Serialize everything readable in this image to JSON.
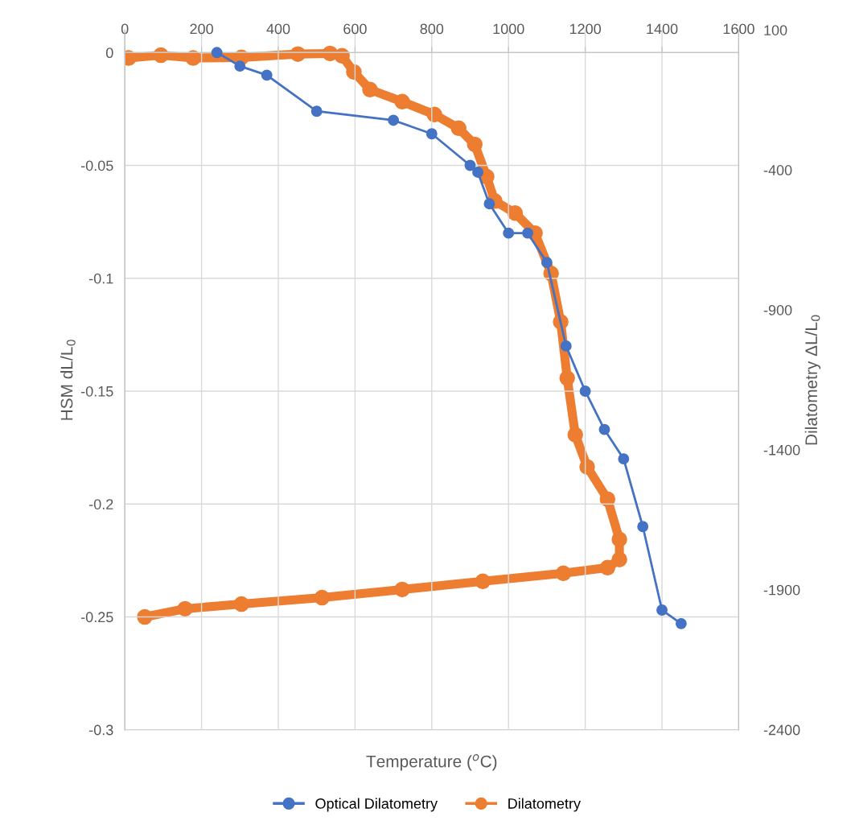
{
  "chart_data": {
    "type": "line",
    "xlabel": "Temperature ($^{o}$C)",
    "ylabel": "HSM dL/L$_{0}$",
    "y2label": "Dilatometry ΔL/L$_{0}$",
    "xlim": [
      0,
      1600
    ],
    "xticks": [
      0,
      200,
      400,
      600,
      800,
      1000,
      1200,
      1400,
      1600
    ],
    "ylim": [
      -0.3,
      0.01
    ],
    "yticks": [
      -0.3,
      -0.25,
      -0.2,
      -0.15,
      -0.1,
      -0.05,
      0
    ],
    "y2lim": [
      -2400,
      100
    ],
    "y2ticks": [
      -2400,
      -1900,
      -1400,
      -900,
      -400,
      100
    ],
    "grid": true,
    "legend": "bottom",
    "series": [
      {
        "name": "Optical Dilatometry",
        "color": "#4472c4",
        "marker": "circle",
        "x": [
          240,
          300,
          370,
          500,
          700,
          800,
          900,
          920,
          950,
          1000,
          1050,
          1100,
          1150,
          1200,
          1250,
          1300,
          1350,
          1400,
          1450
        ],
        "values": [
          0,
          -0.006,
          -0.01,
          -0.026,
          -0.03,
          -0.036,
          -0.05,
          -0.053,
          -0.067,
          -0.08,
          -0.08,
          -0.093,
          -0.13,
          -0.15,
          -0.167,
          -0.18,
          -0.21,
          -0.247,
          -0.253
        ]
      },
      {
        "name": "Dilatometry",
        "color": "#ed7d31",
        "marker": "circle",
        "axis": "y2",
        "x": [
          10,
          94,
          178,
          304,
          451,
          535,
          566,
          597,
          639,
          723,
          807,
          870,
          912,
          943,
          964,
          1017,
          1069,
          1111,
          1136,
          1153,
          1174,
          1205,
          1258,
          1289,
          1289,
          1258,
          1143,
          933,
          723,
          514,
          304,
          157,
          52
        ],
        "values": [
          0,
          10,
          0,
          2,
          14,
          16,
          8,
          -50,
          -113,
          -156,
          -202,
          -251,
          -309,
          -424,
          -511,
          -554,
          -626,
          -770,
          -943,
          -1144,
          -1346,
          -1461,
          -1576,
          -1720,
          -1792,
          -1821,
          -1841,
          -1870,
          -1899,
          -1928,
          -1951,
          -1968,
          -1997
        ]
      }
    ]
  }
}
